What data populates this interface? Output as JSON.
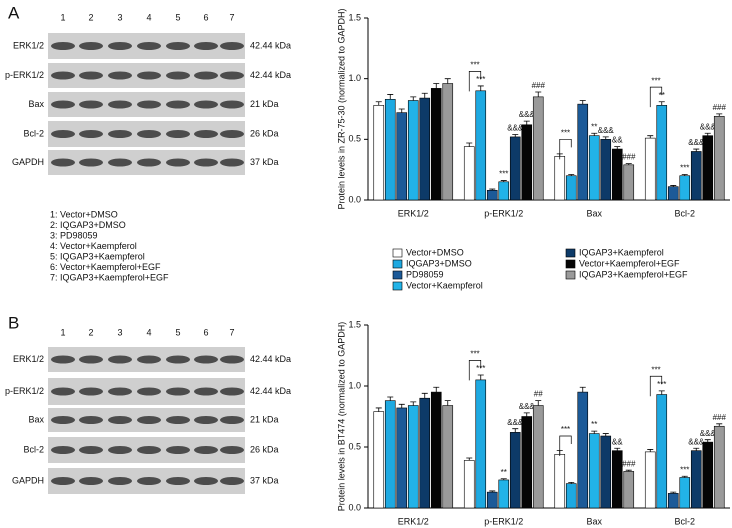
{
  "panel_labels": [
    "A",
    "B"
  ],
  "blots": [
    {
      "lanes": [
        "1",
        "2",
        "3",
        "4",
        "5",
        "6",
        "7"
      ],
      "rows": [
        {
          "label": "ERK1/2",
          "size": "42.44 kDa"
        },
        {
          "label": "p-ERK1/2",
          "size": "42.44 kDa"
        },
        {
          "label": "Bax",
          "size": "21 kDa"
        },
        {
          "label": "Bcl-2",
          "size": "26 kDa"
        },
        {
          "label": "GAPDH",
          "size": "37 kDa"
        }
      ]
    },
    {
      "lanes": [
        "1",
        "2",
        "3",
        "4",
        "5",
        "6",
        "7"
      ],
      "rows": [
        {
          "label": "ERK1/2",
          "size": "42.44 kDa"
        },
        {
          "label": "p-ERK1/2",
          "size": "42.44 kDa"
        },
        {
          "label": "Bax",
          "size": "21 kDa"
        },
        {
          "label": "Bcl-2",
          "size": "26 kDa"
        },
        {
          "label": "GAPDH",
          "size": "37 kDa"
        }
      ]
    }
  ],
  "lane_key": [
    "1: Vector+DMSO",
    "2: IQGAP3+DMSO",
    "3: PD98059",
    "4: Vector+Kaempferol",
    "5: IQGAP3+Kaempferol",
    "6: Vector+Kaempferol+EGF",
    "7: IQGAP3+Kaempferol+EGF"
  ],
  "chart_data": [
    {
      "type": "bar",
      "ylabel": "Protein levels in ZR-75-30 (normalized to GAPDH)",
      "categories": [
        "ERK1/2",
        "p-ERK1/2",
        "Bax",
        "Bcl-2"
      ],
      "ylim": [
        0,
        1.5
      ],
      "yticks": [
        {
          "value": 0,
          "label": "0.0"
        },
        {
          "value": 0.5,
          "label": "0.5"
        },
        {
          "value": 1,
          "label": "1.0"
        },
        {
          "value": 1.5,
          "label": "1.5"
        }
      ],
      "brackets": [
        null,
        "***",
        "***",
        "***"
      ],
      "series": [
        {
          "name": "Vector+DMSO",
          "color": "#ffffff",
          "values": [
            0.78,
            0.44,
            0.36,
            0.51
          ],
          "errors": [
            0.03,
            0.03,
            0.02,
            0.02
          ],
          "significance": [
            null,
            null,
            null,
            null
          ]
        },
        {
          "name": "IQGAP3+DMSO",
          "color": "#1ea9e1",
          "values": [
            0.83,
            0.9,
            0.2,
            0.78
          ],
          "errors": [
            0.04,
            0.04,
            0.01,
            0.03
          ],
          "significance": [
            null,
            "***",
            null,
            "**"
          ]
        },
        {
          "name": "PD98059",
          "color": "#1c5a98",
          "values": [
            0.72,
            0.08,
            0.79,
            0.11
          ],
          "errors": [
            0.03,
            0.01,
            0.03,
            0.01
          ],
          "significance": [
            null,
            null,
            null,
            null
          ]
        },
        {
          "name": "Vector+Kaempferol",
          "color": "#22b3e8",
          "values": [
            0.82,
            0.15,
            0.53,
            0.2
          ],
          "errors": [
            0.03,
            0.01,
            0.02,
            0.01
          ],
          "significance": [
            null,
            "***",
            "**",
            "***"
          ]
        },
        {
          "name": "IQGAP3+Kaempferol",
          "color": "#0d3a68",
          "values": [
            0.84,
            0.52,
            0.5,
            0.4
          ],
          "errors": [
            0.04,
            0.02,
            0.02,
            0.02
          ],
          "significance": [
            null,
            "&&&",
            "&&&",
            "&&&"
          ]
        },
        {
          "name": "Vector+Kaempferol+EGF",
          "color": "#050505",
          "values": [
            0.92,
            0.62,
            0.42,
            0.53
          ],
          "errors": [
            0.04,
            0.03,
            0.02,
            0.02
          ],
          "significance": [
            null,
            "&&&",
            "&&",
            "&&&"
          ]
        },
        {
          "name": "IQGAP3+Kaempferol+EGF",
          "color": "#9a9a9a",
          "values": [
            0.96,
            0.85,
            0.29,
            0.69
          ],
          "errors": [
            0.04,
            0.04,
            0.01,
            0.02
          ],
          "significance": [
            null,
            "###",
            "###",
            "###"
          ]
        }
      ]
    },
    {
      "type": "bar",
      "ylabel": "Protein levels in BT474 (normalized to GAPDH)",
      "categories": [
        "ERK1/2",
        "p-ERK1/2",
        "Bax",
        "Bcl-2"
      ],
      "ylim": [
        0,
        1.5
      ],
      "yticks": [
        {
          "value": 0,
          "label": "0.0"
        },
        {
          "value": 0.5,
          "label": "0.5"
        },
        {
          "value": 1,
          "label": "1.0"
        },
        {
          "value": 1.5,
          "label": "1.5"
        }
      ],
      "brackets": [
        null,
        "***",
        "***",
        "***"
      ],
      "series": [
        {
          "color": "#ffffff",
          "values": [
            0.79,
            0.39,
            0.44,
            0.46
          ],
          "errors": [
            0.03,
            0.02,
            0.03,
            0.02
          ],
          "significance": [
            null,
            null,
            null,
            null
          ]
        },
        {
          "color": "#1ea9e1",
          "values": [
            0.88,
            1.05,
            0.2,
            0.93
          ],
          "errors": [
            0.03,
            0.04,
            0.01,
            0.03
          ],
          "significance": [
            null,
            "***",
            null,
            "***"
          ]
        },
        {
          "color": "#1c5a98",
          "values": [
            0.82,
            0.13,
            0.95,
            0.12
          ],
          "errors": [
            0.03,
            0.01,
            0.04,
            0.01
          ],
          "significance": [
            null,
            null,
            null,
            null
          ]
        },
        {
          "color": "#22b3e8",
          "values": [
            0.84,
            0.23,
            0.61,
            0.25
          ],
          "errors": [
            0.03,
            0.01,
            0.02,
            0.01
          ],
          "significance": [
            null,
            "**",
            "**",
            "***"
          ]
        },
        {
          "color": "#0d3a68",
          "values": [
            0.9,
            0.62,
            0.59,
            0.47
          ],
          "errors": [
            0.04,
            0.03,
            0.02,
            0.02
          ],
          "significance": [
            null,
            "&&&",
            null,
            "&&&"
          ]
        },
        {
          "color": "#050505",
          "values": [
            0.95,
            0.75,
            0.47,
            0.54
          ],
          "errors": [
            0.04,
            0.03,
            0.02,
            0.02
          ],
          "significance": [
            null,
            "&&&",
            "&&",
            "&&&"
          ]
        },
        {
          "color": "#9a9a9a",
          "values": [
            0.84,
            0.84,
            0.3,
            0.67
          ],
          "errors": [
            0.04,
            0.04,
            0.01,
            0.02
          ],
          "significance": [
            null,
            "##",
            "###",
            "###"
          ]
        }
      ]
    }
  ]
}
